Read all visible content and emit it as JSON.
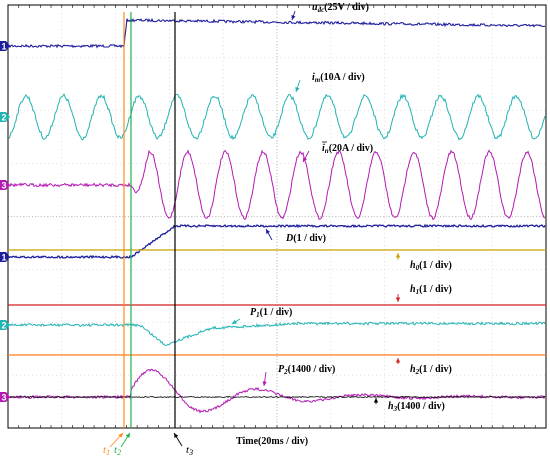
{
  "chart_data": {
    "type": "line",
    "x_label": "Time(20ms / div)",
    "time_markers": [
      {
        "name": "t1",
        "label": "t",
        "sub": "1",
        "color": "#ff8c1a"
      },
      {
        "name": "t2",
        "label": "t",
        "sub": "2",
        "color": "#22b04a"
      },
      {
        "name": "t3",
        "label": "t",
        "sub": "3",
        "color": "#000000"
      }
    ],
    "channel_markers": [
      "1",
      "2",
      "3",
      "1",
      "2",
      "3"
    ],
    "traces": [
      {
        "name": "u_dc",
        "label_main": "u",
        "label_sub": "dc",
        "label_rest": "(25V / div)",
        "color": "#1f1f9e"
      },
      {
        "name": "i_m",
        "label_main": "i",
        "label_sub": "m",
        "label_rest": "(10A / div)",
        "color": "#22b3b3"
      },
      {
        "name": "i_n",
        "label_main": "i",
        "label_sub": "n",
        "label_rest": "(20A / div)",
        "color": "#b31ab3"
      },
      {
        "name": "D",
        "label_main": "D",
        "label_sub": "",
        "label_rest": "(1 / div)",
        "color": "#1f1f9e"
      },
      {
        "name": "h0",
        "label_main": "h",
        "label_sub": "0",
        "label_rest": "(1 / div)",
        "color": "#c8a000"
      },
      {
        "name": "h1",
        "label_main": "h",
        "label_sub": "1",
        "label_rest": "(1 / div)",
        "color": "#d42020"
      },
      {
        "name": "P1",
        "label_main": "P",
        "label_sub": "1",
        "label_rest": "(1 / div)",
        "color": "#22b3b3"
      },
      {
        "name": "h2",
        "label_main": "h",
        "label_sub": "2",
        "label_rest": "(1 / div)",
        "color": "#ff7a1a"
      },
      {
        "name": "P2",
        "label_main": "P",
        "label_sub": "2",
        "label_rest": "(1400 / div)",
        "color": "#b31ab3"
      },
      {
        "name": "h3",
        "label_main": "h",
        "label_sub": "3",
        "label_rest": "(1400 / div)",
        "color": "#000000"
      }
    ],
    "grid": true
  },
  "colors": {
    "grid": "#c8c8c8",
    "frame": "#000000",
    "ch1": "#1f1f9e",
    "ch2": "#22b3b3",
    "ch3": "#b31ab3"
  }
}
